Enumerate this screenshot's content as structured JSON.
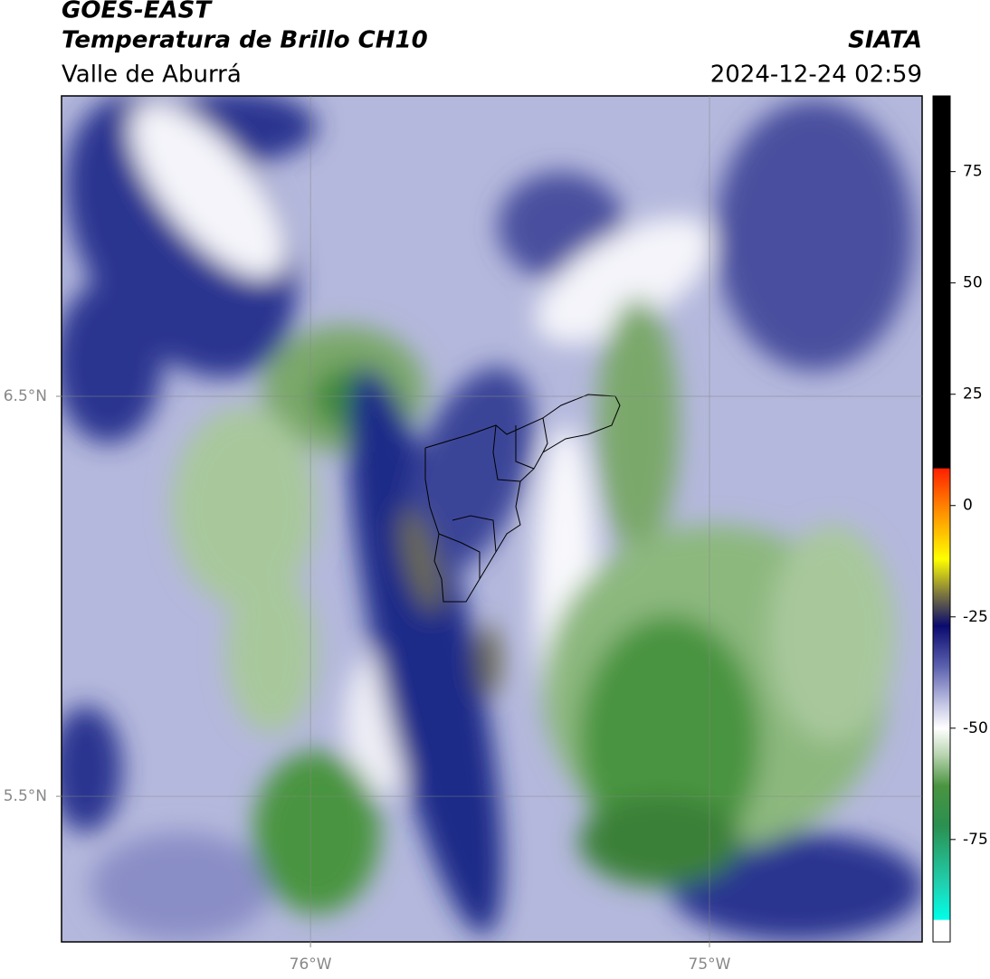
{
  "header": {
    "title": "GOES-EAST",
    "subtitle": "Temperatura de Brillo CH10",
    "region": "Valle de Aburrá",
    "agency": "SIATA",
    "datetime": "2024-12-24 02:59"
  },
  "map": {
    "xlim": [
      -76.624,
      -74.467
    ],
    "ylim": [
      5.136,
      7.251
    ],
    "xticks": [
      {
        "value": -76,
        "label": "76°W"
      },
      {
        "value": -75,
        "label": "75°W"
      }
    ],
    "yticks": [
      {
        "value": 6.5,
        "label": "6.5°N"
      },
      {
        "value": 5.5,
        "label": "5.5°N"
      }
    ],
    "grid": true,
    "colorbar": {
      "lim": [
        -98,
        92
      ],
      "ticks": [
        75,
        50,
        25,
        0,
        -25,
        -50,
        -75
      ],
      "stops": [
        {
          "value": 92,
          "color": "#000000"
        },
        {
          "value": 8.4,
          "color": "#000000"
        },
        {
          "value": 8.3,
          "color": "#ff2000"
        },
        {
          "value": 0,
          "color": "#ff8000"
        },
        {
          "value": -12,
          "color": "#ffff00"
        },
        {
          "value": -20,
          "color": "#7a7440"
        },
        {
          "value": -27,
          "color": "#0a0a6e"
        },
        {
          "value": -36,
          "color": "#5a5fae"
        },
        {
          "value": -45,
          "color": "#c8cae6"
        },
        {
          "value": -50,
          "color": "#ffffff"
        },
        {
          "value": -56,
          "color": "#b8d4b0"
        },
        {
          "value": -63,
          "color": "#4a9440"
        },
        {
          "value": -72,
          "color": "#2a9050"
        },
        {
          "value": -85,
          "color": "#20d0b0"
        },
        {
          "value": -93,
          "color": "#00ffe8"
        },
        {
          "value": -93.1,
          "color": "#ffffff"
        },
        {
          "value": -98,
          "color": "#ffffff"
        }
      ]
    }
  }
}
